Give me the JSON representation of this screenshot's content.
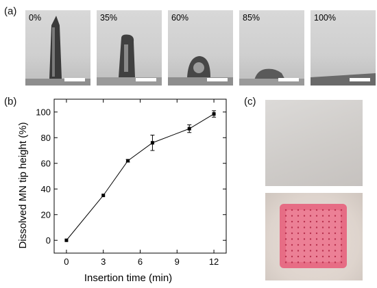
{
  "panels": {
    "a": "(a)",
    "b": "(b)",
    "c": "(c)"
  },
  "photos": [
    {
      "label": "0%",
      "state": "intact-needle"
    },
    {
      "label": "35%",
      "state": "partially-dissolved"
    },
    {
      "label": "60%",
      "state": "mostly-dissolved"
    },
    {
      "label": "85%",
      "state": "nearly-dissolved"
    },
    {
      "label": "100%",
      "state": "fully-dissolved"
    }
  ],
  "colors": {
    "photo_bg": "#cfcfcf",
    "needle": "#3c3c3c",
    "scalebar": "#ffffff",
    "skin": "#d9d6d3",
    "dye": "#e85a78"
  },
  "chart_data": {
    "type": "line",
    "x": [
      0,
      3,
      5,
      7,
      10,
      12
    ],
    "y": [
      0,
      35,
      62,
      76,
      87,
      98.5
    ],
    "yerr": [
      0,
      0,
      1,
      6,
      3,
      2.5
    ],
    "xlabel": "Insertion time (min)",
    "ylabel": "Dissolved MN tip height (%)",
    "xlim": [
      -1,
      13
    ],
    "ylim": [
      -10,
      110
    ],
    "xticks": [
      0,
      3,
      6,
      9,
      12
    ],
    "yticks": [
      0,
      20,
      40,
      60,
      80,
      100
    ],
    "marker": "square",
    "grid": false,
    "color": "#000000"
  }
}
